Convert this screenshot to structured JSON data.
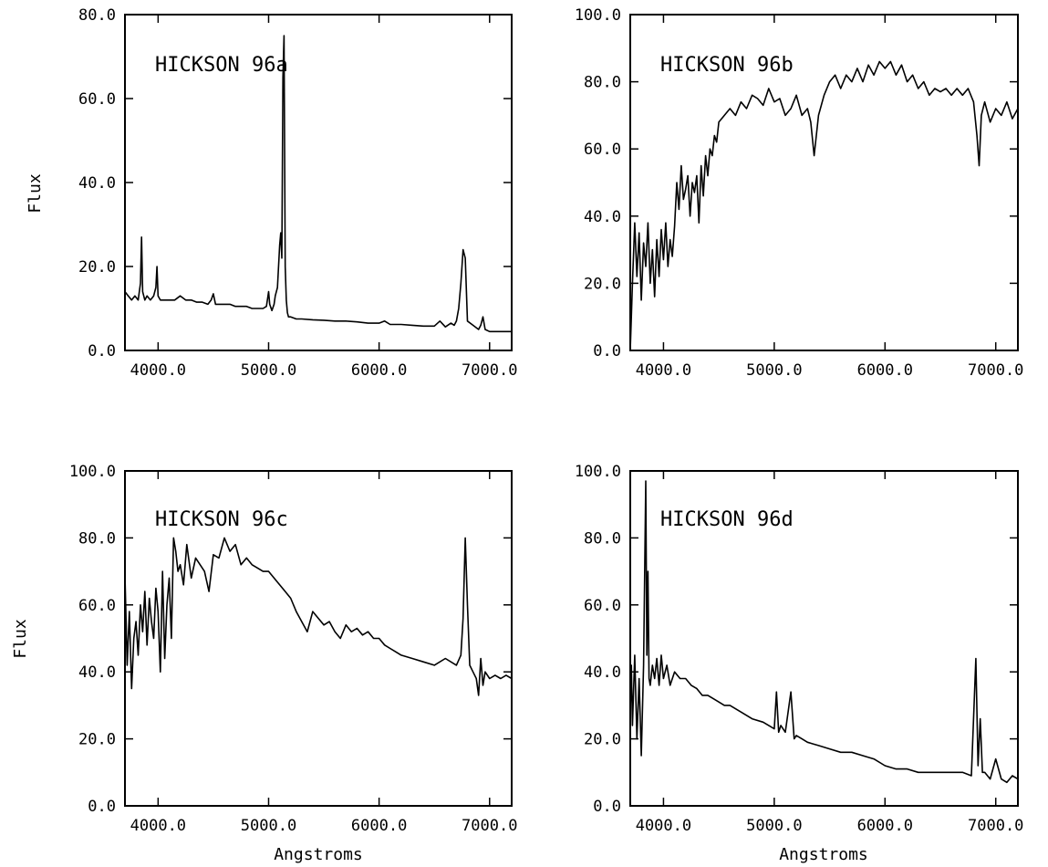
{
  "chart_data": [
    {
      "type": "line",
      "title": "HICKSON 96a",
      "xlabel": "",
      "ylabel": "Flux",
      "xlim": [
        3700,
        7200
      ],
      "ylim": [
        0,
        80
      ],
      "xticks": [
        {
          "value": 4000,
          "label": "4000.0"
        },
        {
          "value": 5000,
          "label": "5000.0"
        },
        {
          "value": 6000,
          "label": "6000.0"
        },
        {
          "value": 7000,
          "label": "7000.0"
        }
      ],
      "yticks": [
        {
          "value": 0,
          "label": "0.0"
        },
        {
          "value": 20,
          "label": "20.0"
        },
        {
          "value": 40,
          "label": "40.0"
        },
        {
          "value": 60,
          "label": "60.0"
        },
        {
          "value": 80,
          "label": "80.0"
        }
      ],
      "series": [
        {
          "x": [
            3700,
            3730,
            3760,
            3790,
            3820,
            3840,
            3850,
            3860,
            3880,
            3900,
            3930,
            3960,
            3980,
            3990,
            4000,
            4020,
            4050,
            4100,
            4150,
            4200,
            4250,
            4300,
            4350,
            4400,
            4450,
            4480,
            4500,
            4520,
            4560,
            4600,
            4650,
            4700,
            4750,
            4800,
            4850,
            4900,
            4950,
            4980,
            5000,
            5010,
            5030,
            5050,
            5060,
            5080,
            5100,
            5110,
            5120,
            5130,
            5140,
            5150,
            5160,
            5170,
            5180,
            5200,
            5250,
            5300,
            5400,
            5500,
            5600,
            5700,
            5800,
            5900,
            6000,
            6050,
            6100,
            6200,
            6300,
            6400,
            6500,
            6550,
            6600,
            6650,
            6680,
            6700,
            6720,
            6740,
            6760,
            6780,
            6800,
            6850,
            6900,
            6920,
            6940,
            6960,
            7000,
            7100,
            7200
          ],
          "y": [
            14,
            13,
            12,
            13,
            12,
            16,
            27,
            14,
            12,
            13,
            12,
            13,
            15,
            20,
            13,
            12,
            12,
            12,
            12,
            13,
            12,
            12,
            11.5,
            11.5,
            11,
            12,
            13.5,
            11,
            11,
            11,
            11,
            10.5,
            10.5,
            10.5,
            10,
            10,
            10,
            10.5,
            14,
            11,
            9.5,
            11,
            13,
            15,
            25,
            28,
            22,
            65,
            75,
            20,
            12,
            9,
            8,
            8,
            7.5,
            7.5,
            7.3,
            7.2,
            7,
            7,
            6.8,
            6.5,
            6.5,
            7,
            6.2,
            6.2,
            6,
            5.8,
            5.8,
            7,
            5.6,
            6.5,
            6,
            7,
            10,
            16,
            24,
            22,
            7,
            6,
            5,
            6,
            8,
            5,
            4.5,
            4.5,
            4.5
          ]
        }
      ]
    },
    {
      "type": "line",
      "title": "HICKSON 96b",
      "xlabel": "",
      "ylabel": "",
      "xlim": [
        3700,
        7200
      ],
      "ylim": [
        0,
        100
      ],
      "xticks": [
        {
          "value": 4000,
          "label": "4000.0"
        },
        {
          "value": 5000,
          "label": "5000.0"
        },
        {
          "value": 6000,
          "label": "6000.0"
        },
        {
          "value": 7000,
          "label": "7000.0"
        }
      ],
      "yticks": [
        {
          "value": 0,
          "label": "0.0"
        },
        {
          "value": 20,
          "label": "20.0"
        },
        {
          "value": 40,
          "label": "40.0"
        },
        {
          "value": 60,
          "label": "60.0"
        },
        {
          "value": 80,
          "label": "80.0"
        },
        {
          "value": 100,
          "label": "100.0"
        }
      ],
      "series": [
        {
          "x": [
            3700,
            3720,
            3740,
            3760,
            3780,
            3800,
            3820,
            3840,
            3860,
            3880,
            3900,
            3920,
            3940,
            3960,
            3980,
            4000,
            4020,
            4040,
            4060,
            4080,
            4100,
            4120,
            4140,
            4160,
            4180,
            4200,
            4220,
            4240,
            4260,
            4280,
            4300,
            4320,
            4340,
            4360,
            4380,
            4400,
            4420,
            4440,
            4460,
            4480,
            4500,
            4550,
            4600,
            4650,
            4700,
            4750,
            4800,
            4850,
            4900,
            4950,
            5000,
            5050,
            5100,
            5150,
            5200,
            5250,
            5300,
            5330,
            5360,
            5400,
            5450,
            5500,
            5550,
            5600,
            5650,
            5700,
            5750,
            5800,
            5850,
            5900,
            5950,
            6000,
            6050,
            6100,
            6150,
            6200,
            6250,
            6300,
            6350,
            6400,
            6450,
            6500,
            6550,
            6600,
            6650,
            6700,
            6750,
            6800,
            6830,
            6850,
            6870,
            6900,
            6950,
            7000,
            7050,
            7100,
            7150,
            7200
          ],
          "y": [
            0,
            20,
            38,
            22,
            35,
            15,
            32,
            25,
            38,
            20,
            30,
            16,
            33,
            22,
            36,
            27,
            38,
            25,
            33,
            28,
            37,
            50,
            42,
            55,
            45,
            48,
            52,
            40,
            50,
            47,
            52,
            38,
            55,
            46,
            58,
            52,
            60,
            58,
            64,
            62,
            68,
            70,
            72,
            70,
            74,
            72,
            76,
            75,
            73,
            78,
            74,
            75,
            70,
            72,
            76,
            70,
            72,
            68,
            58,
            70,
            76,
            80,
            82,
            78,
            82,
            80,
            84,
            80,
            85,
            82,
            86,
            84,
            86,
            82,
            85,
            80,
            82,
            78,
            80,
            76,
            78,
            77,
            78,
            76,
            78,
            76,
            78,
            74,
            64,
            55,
            70,
            74,
            68,
            72,
            70,
            74,
            69,
            72
          ]
        }
      ]
    },
    {
      "type": "line",
      "title": "HICKSON 96c",
      "xlabel": "Angstroms",
      "ylabel": "Flux",
      "xlim": [
        3700,
        7200
      ],
      "ylim": [
        0,
        100
      ],
      "xticks": [
        {
          "value": 4000,
          "label": "4000.0"
        },
        {
          "value": 5000,
          "label": "5000.0"
        },
        {
          "value": 6000,
          "label": "6000.0"
        },
        {
          "value": 7000,
          "label": "7000.0"
        }
      ],
      "yticks": [
        {
          "value": 0,
          "label": "0.0"
        },
        {
          "value": 20,
          "label": "20.0"
        },
        {
          "value": 40,
          "label": "40.0"
        },
        {
          "value": 60,
          "label": "60.0"
        },
        {
          "value": 80,
          "label": "80.0"
        },
        {
          "value": 100,
          "label": "100.0"
        }
      ],
      "series": [
        {
          "x": [
            3700,
            3720,
            3740,
            3760,
            3780,
            3800,
            3820,
            3840,
            3860,
            3880,
            3900,
            3920,
            3940,
            3960,
            3980,
            4000,
            4020,
            4040,
            4060,
            4080,
            4100,
            4120,
            4140,
            4160,
            4180,
            4200,
            4230,
            4260,
            4300,
            4340,
            4380,
            4420,
            4460,
            4500,
            4550,
            4600,
            4650,
            4700,
            4750,
            4800,
            4850,
            4900,
            4950,
            5000,
            5050,
            5100,
            5150,
            5200,
            5250,
            5300,
            5350,
            5400,
            5450,
            5500,
            5550,
            5600,
            5650,
            5700,
            5750,
            5800,
            5850,
            5900,
            5950,
            6000,
            6050,
            6100,
            6150,
            6200,
            6300,
            6400,
            6500,
            6600,
            6700,
            6740,
            6760,
            6780,
            6800,
            6820,
            6850,
            6880,
            6900,
            6920,
            6940,
            6960,
            7000,
            7050,
            7100,
            7150,
            7200
          ],
          "y": [
            69,
            42,
            58,
            35,
            50,
            55,
            45,
            60,
            52,
            64,
            48,
            62,
            55,
            50,
            65,
            58,
            40,
            70,
            44,
            60,
            68,
            50,
            80,
            76,
            70,
            72,
            66,
            78,
            68,
            74,
            72,
            70,
            64,
            75,
            74,
            80,
            76,
            78,
            72,
            74,
            72,
            71,
            70,
            70,
            68,
            66,
            64,
            62,
            58,
            55,
            52,
            58,
            56,
            54,
            55,
            52,
            50,
            54,
            52,
            53,
            51,
            52,
            50,
            50,
            48,
            47,
            46,
            45,
            44,
            43,
            42,
            44,
            42,
            45,
            56,
            80,
            60,
            42,
            40,
            38,
            33,
            44,
            36,
            40,
            38,
            39,
            38,
            39,
            38
          ]
        }
      ]
    },
    {
      "type": "line",
      "title": "HICKSON 96d",
      "xlabel": "Angstroms",
      "ylabel": "",
      "xlim": [
        3700,
        7200
      ],
      "ylim": [
        0,
        100
      ],
      "xticks": [
        {
          "value": 4000,
          "label": "4000.0"
        },
        {
          "value": 5000,
          "label": "5000.0"
        },
        {
          "value": 6000,
          "label": "6000.0"
        },
        {
          "value": 7000,
          "label": "7000.0"
        }
      ],
      "yticks": [
        {
          "value": 0,
          "label": "0.0"
        },
        {
          "value": 20,
          "label": "20.0"
        },
        {
          "value": 40,
          "label": "40.0"
        },
        {
          "value": 60,
          "label": "60.0"
        },
        {
          "value": 80,
          "label": "80.0"
        },
        {
          "value": 100,
          "label": "100.0"
        }
      ],
      "series": [
        {
          "x": [
            3700,
            3710,
            3720,
            3740,
            3760,
            3780,
            3800,
            3820,
            3840,
            3850,
            3860,
            3870,
            3880,
            3900,
            3920,
            3940,
            3960,
            3980,
            4000,
            4030,
            4060,
            4100,
            4150,
            4200,
            4250,
            4300,
            4350,
            4400,
            4450,
            4500,
            4550,
            4600,
            4700,
            4800,
            4900,
            5000,
            5020,
            5040,
            5060,
            5100,
            5150,
            5180,
            5200,
            5250,
            5300,
            5400,
            5500,
            5600,
            5700,
            5800,
            5900,
            6000,
            6100,
            6200,
            6300,
            6400,
            6500,
            6600,
            6700,
            6780,
            6820,
            6840,
            6860,
            6880,
            6900,
            6950,
            7000,
            7050,
            7100,
            7150,
            7200
          ],
          "y": [
            28,
            42,
            24,
            45,
            20,
            38,
            15,
            42,
            97,
            45,
            70,
            38,
            36,
            42,
            38,
            44,
            36,
            45,
            38,
            42,
            36,
            40,
            38,
            38,
            36,
            35,
            33,
            33,
            32,
            31,
            30,
            30,
            28,
            26,
            25,
            23,
            34,
            22,
            24,
            22,
            34,
            20,
            21,
            20,
            19,
            18,
            17,
            16,
            16,
            15,
            14,
            12,
            11,
            11,
            10,
            10,
            10,
            10,
            10,
            9,
            44,
            12,
            26,
            10,
            10,
            8,
            14,
            8,
            7,
            9,
            8
          ]
        }
      ]
    }
  ]
}
